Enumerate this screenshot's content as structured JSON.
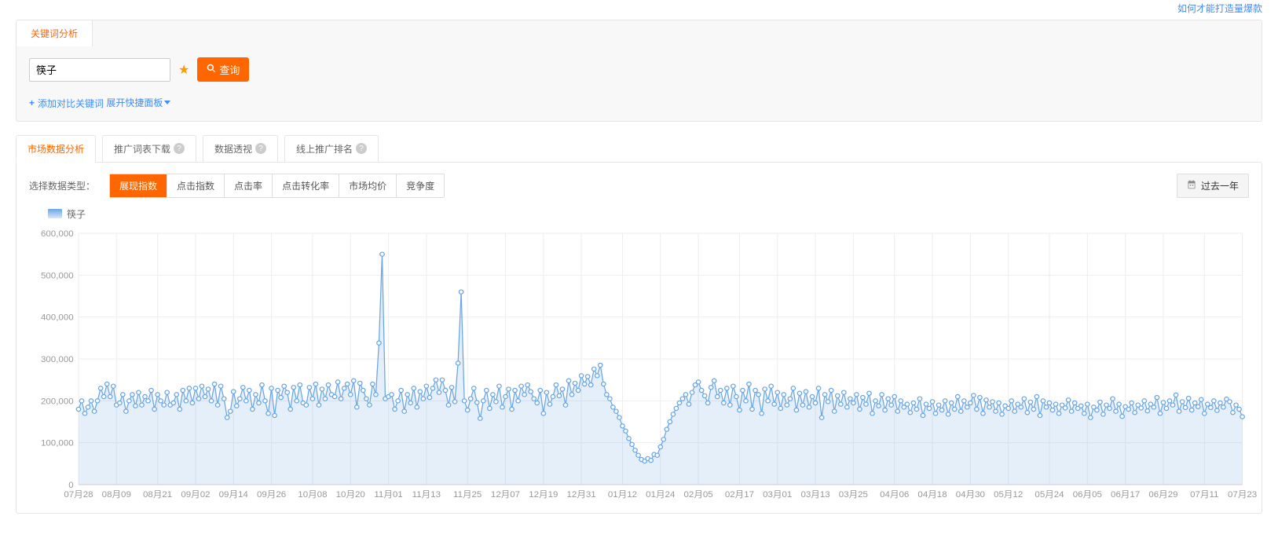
{
  "top_link": "如何才能打造量爆款",
  "panel": {
    "tab_label": "关键词分析",
    "keyword_input_value": "筷子",
    "search_button_label": "查询",
    "add_compare_label": "添加对比关键词",
    "expand_panel_label": "展开快捷面板"
  },
  "subtabs": [
    {
      "label": "市场数据分析",
      "help": false,
      "active": true
    },
    {
      "label": "推广词表下载",
      "help": true,
      "active": false
    },
    {
      "label": "数据透视",
      "help": true,
      "active": false
    },
    {
      "label": "线上推广排名",
      "help": true,
      "active": false
    }
  ],
  "metrics": {
    "label": "选择数据类型：",
    "options": [
      "展现指数",
      "点击指数",
      "点击率",
      "点击转化率",
      "市场均价",
      "竞争度"
    ],
    "active_index": 0,
    "time_range_label": "过去一年"
  },
  "chart": {
    "type": "line",
    "legend_label": "筷子",
    "series_color": "#6aa6e6",
    "area_color": "#6aa6e6",
    "grid_color": "#eeeeee",
    "axis_text_color": "#999999",
    "background_color": "#ffffff",
    "ylim": [
      0,
      600000
    ],
    "ytick_step": 100000,
    "yticks": [
      "0",
      "100,000",
      "200,000",
      "300,000",
      "400,000",
      "500,000",
      "600,000"
    ],
    "xlabel_every": 12,
    "xlabels": [
      "07月28",
      "08月09",
      "08月21",
      "09月02",
      "09月14",
      "09月26",
      "10月08",
      "10月20",
      "11月01",
      "11月13",
      "11月25",
      "12月07",
      "12月19",
      "12月31",
      "01月12",
      "01月24",
      "02月05",
      "02月17",
      "03月01",
      "03月13",
      "03月25",
      "04月06",
      "04月18",
      "04月30",
      "05月12",
      "05月24",
      "06月05",
      "06月17",
      "06月29",
      "07月11",
      "07月23"
    ],
    "marker_radius": 2.6,
    "line_width": 1.2,
    "values": [
      180000,
      200000,
      170000,
      185000,
      200000,
      175000,
      200000,
      230000,
      210000,
      240000,
      210000,
      235000,
      190000,
      195000,
      215000,
      175000,
      200000,
      215000,
      188000,
      220000,
      190000,
      210000,
      200000,
      225000,
      180000,
      215000,
      200000,
      190000,
      220000,
      190000,
      195000,
      215000,
      180000,
      225000,
      200000,
      230000,
      195000,
      230000,
      205000,
      235000,
      210000,
      228000,
      200000,
      240000,
      190000,
      235000,
      205000,
      160000,
      175000,
      222000,
      188000,
      205000,
      232000,
      200000,
      225000,
      180000,
      215000,
      195000,
      238000,
      200000,
      170000,
      230000,
      165000,
      225000,
      208000,
      235000,
      220000,
      180000,
      232000,
      200000,
      238000,
      195000,
      190000,
      232000,
      205000,
      240000,
      190000,
      228000,
      205000,
      238000,
      215000,
      210000,
      245000,
      205000,
      230000,
      240000,
      215000,
      248000,
      185000,
      242000,
      225000,
      205000,
      190000,
      240000,
      215000,
      338000,
      550000,
      205000,
      210000,
      215000,
      180000,
      200000,
      225000,
      175000,
      215000,
      195000,
      230000,
      185000,
      222000,
      205000,
      235000,
      208000,
      230000,
      250000,
      220000,
      250000,
      225000,
      190000,
      232000,
      198000,
      290000,
      460000,
      200000,
      178000,
      205000,
      230000,
      196000,
      158000,
      200000,
      225000,
      182000,
      215000,
      198000,
      235000,
      185000,
      210000,
      228000,
      180000,
      225000,
      200000,
      235000,
      215000,
      238000,
      222000,
      205000,
      195000,
      225000,
      170000,
      220000,
      192000,
      210000,
      238000,
      212000,
      228000,
      190000,
      248000,
      215000,
      242000,
      225000,
      260000,
      240000,
      258000,
      238000,
      276000,
      260000,
      285000,
      240000,
      215000,
      205000,
      185000,
      175000,
      160000,
      140000,
      128000,
      110000,
      96000,
      82000,
      70000,
      60000,
      56000,
      62000,
      58000,
      72000,
      70000,
      90000,
      108000,
      132000,
      150000,
      168000,
      182000,
      195000,
      205000,
      215000,
      192000,
      220000,
      238000,
      245000,
      225000,
      212000,
      195000,
      232000,
      248000,
      210000,
      225000,
      195000,
      230000,
      190000,
      235000,
      210000,
      178000,
      225000,
      200000,
      240000,
      180000,
      225000,
      215000,
      170000,
      228000,
      200000,
      235000,
      192000,
      220000,
      182000,
      215000,
      190000,
      205000,
      230000,
      178000,
      218000,
      190000,
      222000,
      185000,
      210000,
      195000,
      230000,
      160000,
      215000,
      198000,
      225000,
      175000,
      212000,
      192000,
      220000,
      185000,
      205000,
      195000,
      215000,
      180000,
      208000,
      192000,
      218000,
      170000,
      200000,
      188000,
      215000,
      178000,
      205000,
      190000,
      210000,
      175000,
      200000,
      185000,
      192000,
      172000,
      195000,
      180000,
      205000,
      165000,
      192000,
      182000,
      198000,
      170000,
      190000,
      178000,
      200000,
      168000,
      195000,
      180000,
      210000,
      175000,
      200000,
      185000,
      195000,
      213000,
      180000,
      208000,
      170000,
      202000,
      185000,
      198000,
      175000,
      195000,
      168000,
      188000,
      182000,
      200000,
      175000,
      192000,
      185000,
      205000,
      172000,
      197000,
      180000,
      210000,
      165000,
      200000,
      185000,
      195000,
      178000,
      192000,
      170000,
      190000,
      183000,
      202000,
      175000,
      195000,
      182000,
      188000,
      170000,
      192000,
      160000,
      185000,
      178000,
      197000,
      168000,
      190000,
      182000,
      205000,
      175000,
      192000,
      163000,
      186000,
      180000,
      195000,
      172000,
      190000,
      183000,
      200000,
      176000,
      192000,
      185000,
      208000,
      170000,
      196000,
      182000,
      200000,
      190000,
      214000,
      175000,
      198000,
      184000,
      206000,
      178000,
      195000,
      186000,
      203000,
      170000,
      192000,
      184000,
      200000,
      177000,
      195000,
      185000,
      204000,
      198000,
      172000,
      190000,
      180000,
      162000
    ]
  }
}
